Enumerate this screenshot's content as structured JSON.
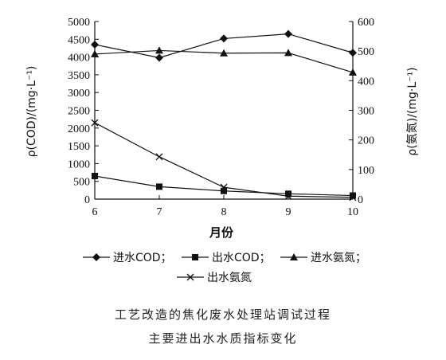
{
  "chart_data": {
    "type": "line",
    "title": "",
    "xlabel": "月份",
    "ylabel_left": "ρ(COD)/(mg·L⁻¹)",
    "ylabel_right": "ρ(氨氮)/(mg·L⁻¹)",
    "x": [
      6,
      7,
      8,
      9,
      10
    ],
    "xlim": [
      6,
      10
    ],
    "ylim_left": [
      0,
      5000
    ],
    "ylim_right": [
      0,
      600
    ],
    "yticks_left": [
      0,
      500,
      1000,
      1500,
      2000,
      2500,
      3000,
      3500,
      4000,
      4500,
      5000
    ],
    "yticks_right": [
      0,
      100,
      200,
      300,
      400,
      500,
      600
    ],
    "grid": false,
    "legend_position": "bottom",
    "series": [
      {
        "name": "进水COD；",
        "axis": "left",
        "marker": "diamond",
        "values": [
          4350,
          3980,
          4520,
          4650,
          4120
        ]
      },
      {
        "name": "出水COD；",
        "axis": "left",
        "marker": "square",
        "values": [
          650,
          350,
          230,
          150,
          100
        ]
      },
      {
        "name": "进水氨氮；",
        "axis": "right",
        "marker": "triangle",
        "values": [
          490,
          502,
          493,
          494,
          428
        ]
      },
      {
        "name": "出水氨氮",
        "axis": "right",
        "marker": "x",
        "values": [
          258,
          143,
          40,
          10,
          6
        ]
      }
    ]
  },
  "caption": {
    "line1": "工艺改造的焦化废水处理站调试过程",
    "line2": "主要进出水水质指标变化"
  },
  "colors": {
    "line": "#111111"
  }
}
